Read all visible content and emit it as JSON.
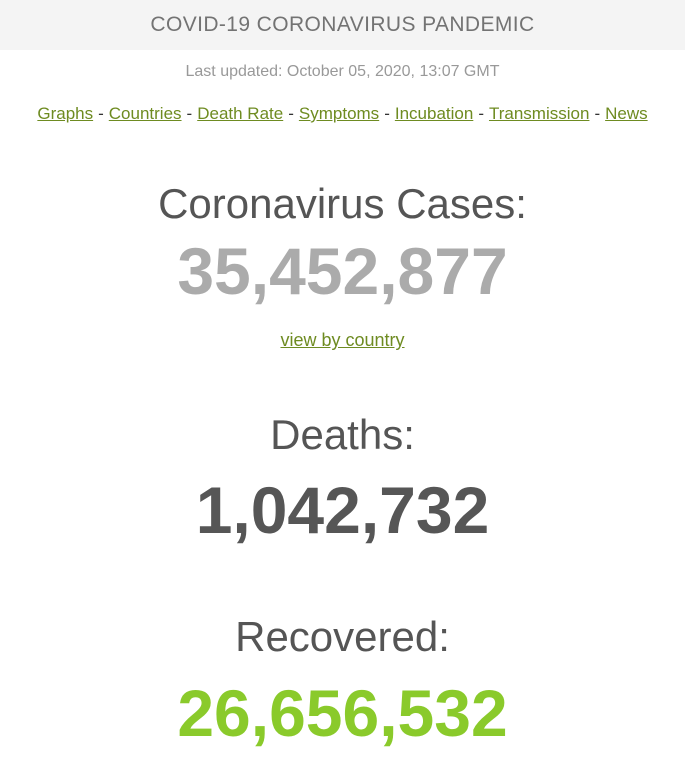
{
  "header": {
    "title": "COVID-19 CORONAVIRUS PANDEMIC",
    "background_color": "#f4f4f4",
    "title_color": "#737373"
  },
  "last_updated": "Last updated: October 05, 2020, 13:07 GMT",
  "nav": {
    "separator": "-",
    "link_color": "#6e8b21",
    "items": [
      "Graphs",
      "Countries",
      "Death Rate",
      "Symptoms",
      "Incubation",
      "Transmission",
      "News"
    ]
  },
  "counters": [
    {
      "heading": "Coronavirus Cases:",
      "value": "35,452,877",
      "value_color": "#ababab",
      "link_label": "view by country"
    },
    {
      "heading": "Deaths:",
      "value": "1,042,732",
      "value_color": "#565656"
    },
    {
      "heading": "Recovered:",
      "value": "26,656,532",
      "value_color": "#8aca2b"
    }
  ]
}
